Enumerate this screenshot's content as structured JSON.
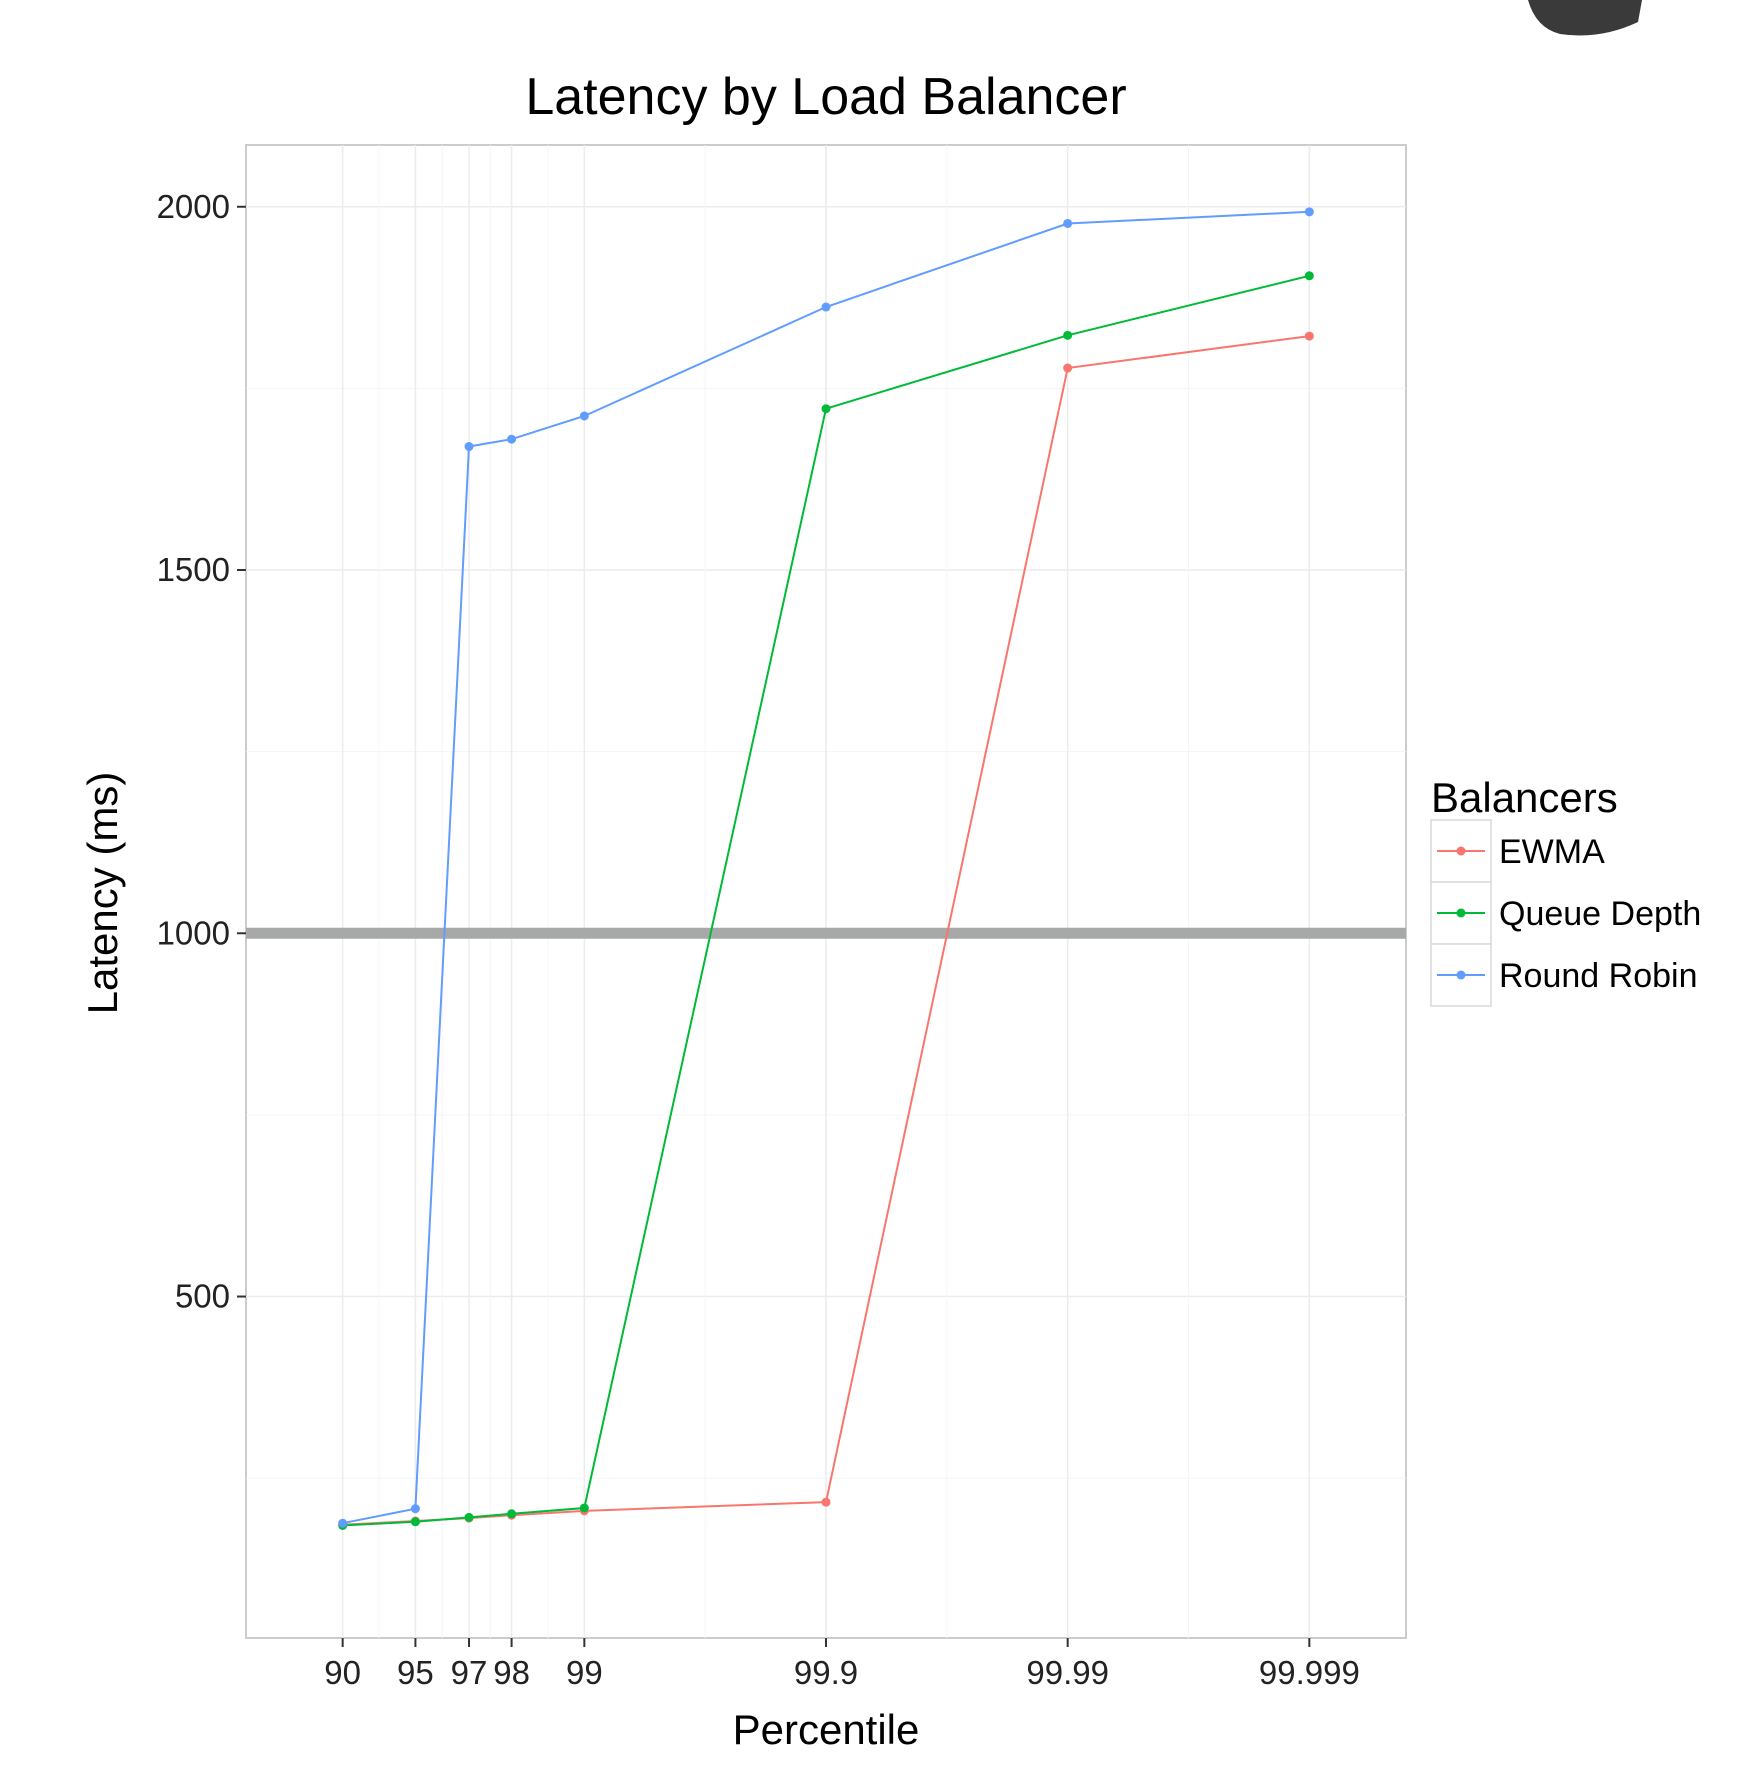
{
  "chart_data": {
    "type": "line",
    "title": "Latency by Load Balancer",
    "xlabel": "Percentile",
    "ylabel": "Latency (ms)",
    "x_scale": "log-of-remainder",
    "categories": [
      "90",
      "95",
      "97",
      "98",
      "99",
      "99.9",
      "99.99",
      "99.999"
    ],
    "x": [
      90,
      95,
      97,
      98,
      99,
      99.9,
      99.99,
      99.999
    ],
    "y_ticks": [
      500,
      1000,
      1500,
      2000
    ],
    "ylim": [
      30,
      2085
    ],
    "grid": true,
    "reference_line": {
      "y": 1000,
      "color": "#A6A9A8"
    },
    "legend": {
      "title": "Balancers",
      "placement": "right"
    },
    "series": [
      {
        "name": "EWMA",
        "color": "#F8766D",
        "values": [
          186,
          191,
          195,
          199,
          205,
          217,
          1778,
          1822
        ]
      },
      {
        "name": "Queue Depth",
        "color": "#00BA38",
        "values": [
          185,
          190,
          196,
          201,
          209,
          1722,
          1823,
          1905
        ]
      },
      {
        "name": "Round Robin",
        "color": "#619CFF",
        "values": [
          188,
          208,
          1670,
          1680,
          1712,
          1862,
          1977,
          1993
        ]
      }
    ]
  }
}
